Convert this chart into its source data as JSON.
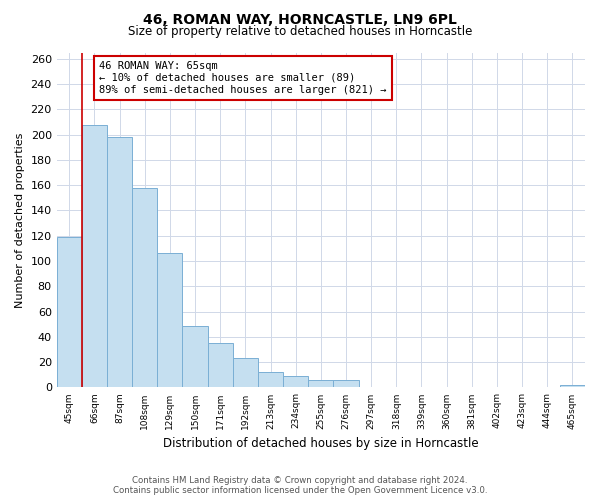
{
  "title": "46, ROMAN WAY, HORNCASTLE, LN9 6PL",
  "subtitle": "Size of property relative to detached houses in Horncastle",
  "xlabel": "Distribution of detached houses by size in Horncastle",
  "ylabel": "Number of detached properties",
  "bin_labels": [
    "45sqm",
    "66sqm",
    "87sqm",
    "108sqm",
    "129sqm",
    "150sqm",
    "171sqm",
    "192sqm",
    "213sqm",
    "234sqm",
    "255sqm",
    "276sqm",
    "297sqm",
    "318sqm",
    "339sqm",
    "360sqm",
    "381sqm",
    "402sqm",
    "423sqm",
    "444sqm",
    "465sqm"
  ],
  "bar_heights": [
    119,
    208,
    198,
    158,
    106,
    49,
    35,
    23,
    12,
    9,
    6,
    6,
    0,
    0,
    0,
    0,
    0,
    0,
    0,
    0,
    2
  ],
  "bar_color": "#c5dff0",
  "bar_edge_color": "#7aafd4",
  "ylim": [
    0,
    265
  ],
  "yticks": [
    0,
    20,
    40,
    60,
    80,
    100,
    120,
    140,
    160,
    180,
    200,
    220,
    240,
    260
  ],
  "property_line_index": 1,
  "property_line_color": "#cc0000",
  "annotation_text": "46 ROMAN WAY: 65sqm\n← 10% of detached houses are smaller (89)\n89% of semi-detached houses are larger (821) →",
  "annotation_box_color": "#ffffff",
  "annotation_box_edge_color": "#cc0000",
  "footer_line1": "Contains HM Land Registry data © Crown copyright and database right 2024.",
  "footer_line2": "Contains public sector information licensed under the Open Government Licence v3.0.",
  "background_color": "#ffffff",
  "grid_color": "#d0d8e8"
}
